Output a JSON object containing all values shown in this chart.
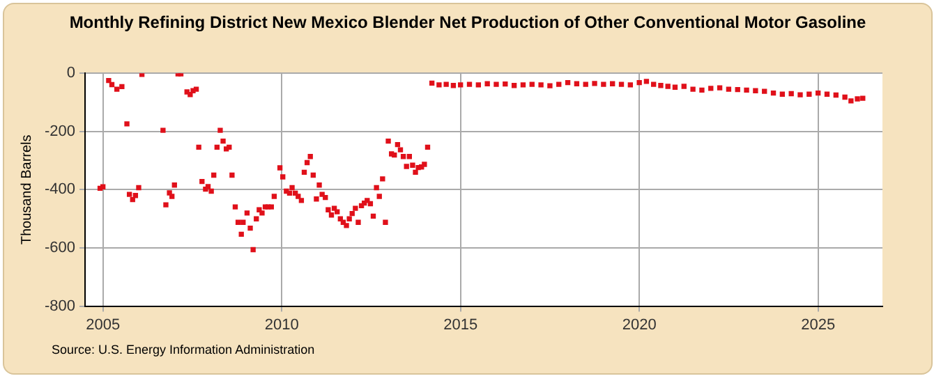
{
  "chart_data": {
    "type": "scatter",
    "title": "Monthly Refining District New Mexico Blender Net Production of Other Conventional Motor Gasoline",
    "ylabel": "Thousand Barrels",
    "annotations": [
      "Source: U.S. Energy Information Administration"
    ],
    "xlim": [
      2004.5,
      2026.8
    ],
    "xticks": [
      2005,
      2010,
      2015,
      2020,
      2025
    ],
    "ylim": [
      -800,
      0
    ],
    "yticks": [
      -800,
      -600,
      -400,
      -200,
      0
    ],
    "grid": true,
    "marker": "square",
    "legend": false,
    "series": [
      {
        "color": "#e0101a",
        "x": [
          2004.92,
          2005.0,
          2005.16,
          2005.25,
          2005.39,
          2005.53,
          2005.67,
          2005.74,
          2005.83,
          2005.91,
          2006.0,
          2006.09,
          2006.68,
          2006.76,
          2006.86,
          2006.93,
          2007.0,
          2007.1,
          2007.18,
          2007.35,
          2007.44,
          2007.52,
          2007.61,
          2007.68,
          2007.77,
          2007.87,
          2007.94,
          2008.03,
          2008.1,
          2008.19,
          2008.28,
          2008.36,
          2008.45,
          2008.53,
          2008.61,
          2008.7,
          2008.78,
          2008.87,
          2008.92,
          2009.03,
          2009.12,
          2009.2,
          2009.29,
          2009.37,
          2009.45,
          2009.54,
          2009.62,
          2009.71,
          2009.79,
          2009.95,
          2010.03,
          2010.13,
          2010.22,
          2010.29,
          2010.38,
          2010.46,
          2010.55,
          2010.63,
          2010.71,
          2010.8,
          2010.88,
          2010.97,
          2011.05,
          2011.13,
          2011.22,
          2011.3,
          2011.39,
          2011.47,
          2011.55,
          2011.64,
          2011.72,
          2011.81,
          2011.89,
          2011.97,
          2012.06,
          2012.14,
          2012.23,
          2012.31,
          2012.39,
          2012.48,
          2012.56,
          2012.65,
          2012.73,
          2012.82,
          2012.9,
          2012.98,
          2013.07,
          2013.15,
          2013.24,
          2013.32,
          2013.4,
          2013.49,
          2013.57,
          2013.66,
          2013.74,
          2013.82,
          2013.91,
          2013.99,
          2014.08,
          2014.2,
          2014.4,
          2014.6,
          2014.8,
          2015.0,
          2015.25,
          2015.5,
          2015.75,
          2016.0,
          2016.25,
          2016.5,
          2016.75,
          2017.0,
          2017.25,
          2017.5,
          2017.75,
          2018.0,
          2018.25,
          2018.5,
          2018.75,
          2019.0,
          2019.25,
          2019.5,
          2019.75,
          2020.0,
          2020.2,
          2020.4,
          2020.6,
          2020.8,
          2021.0,
          2021.25,
          2021.5,
          2021.75,
          2022.0,
          2022.25,
          2022.5,
          2022.75,
          2023.0,
          2023.25,
          2023.5,
          2023.75,
          2024.0,
          2024.25,
          2024.5,
          2024.75,
          2025.0,
          2025.25,
          2025.5,
          2025.75,
          2025.92,
          2026.1,
          2026.25
        ],
        "values": [
          -395,
          -390,
          -25,
          -39,
          -55,
          -46,
          -174,
          -416,
          -434,
          -420,
          -393,
          -4,
          -196,
          -452,
          -411,
          -423,
          -384,
          -2,
          -2,
          -64,
          -73,
          -60,
          -55,
          -254,
          -372,
          -398,
          -389,
          -405,
          -350,
          -254,
          -196,
          -233,
          -260,
          -254,
          -350,
          -459,
          -512,
          -553,
          -512,
          -480,
          -532,
          -606,
          -500,
          -469,
          -480,
          -459,
          -459,
          -459,
          -423,
          -325,
          -356,
          -405,
          -412,
          -393,
          -412,
          -423,
          -437,
          -340,
          -307,
          -286,
          -350,
          -432,
          -384,
          -416,
          -427,
          -469,
          -487,
          -464,
          -476,
          -500,
          -512,
          -523,
          -500,
          -482,
          -464,
          -512,
          -455,
          -446,
          -437,
          -448,
          -491,
          -393,
          -423,
          -363,
          -512,
          -233,
          -277,
          -281,
          -245,
          -263,
          -286,
          -320,
          -286,
          -316,
          -340,
          -324,
          -322,
          -313,
          -254,
          -34,
          -40,
          -38,
          -42,
          -40,
          -38,
          -40,
          -36,
          -38,
          -37,
          -42,
          -40,
          -38,
          -40,
          -43,
          -38,
          -32,
          -36,
          -38,
          -35,
          -38,
          -36,
          -38,
          -40,
          -32,
          -28,
          -38,
          -42,
          -45,
          -48,
          -45,
          -55,
          -58,
          -52,
          -50,
          -55,
          -56,
          -58,
          -60,
          -62,
          -68,
          -72,
          -70,
          -74,
          -72,
          -68,
          -72,
          -75,
          -82,
          -95,
          -88,
          -86
        ]
      }
    ]
  }
}
